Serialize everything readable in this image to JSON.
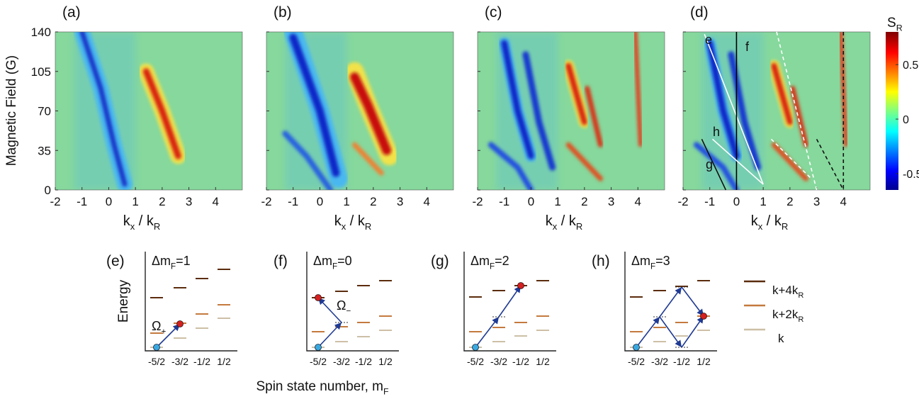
{
  "top": {
    "y_label": "Magnetic Field (G)",
    "ylim": [
      0,
      140
    ],
    "yticks": [
      0,
      35,
      70,
      105,
      140
    ],
    "xlim": [
      -2,
      5
    ],
    "xticks": [
      -2,
      -1,
      0,
      1,
      2,
      3,
      4
    ],
    "x_label": {
      "a": "k",
      "a_sub": "x",
      "b": " / k",
      "b_sub": "R"
    },
    "panels": [
      {
        "label": "(a)"
      },
      {
        "label": "(b)"
      },
      {
        "label": "(c)"
      },
      {
        "label": "(d)",
        "annotations": [
          "e",
          "f",
          "h",
          "g"
        ]
      }
    ]
  },
  "colorbar": {
    "title": {
      "text": "S",
      "sub": "R"
    },
    "lim": [
      -0.65,
      0.8
    ],
    "ticks": [
      0.5,
      0,
      -0.5
    ]
  },
  "bottom": {
    "y_label": "Energy",
    "x_label": {
      "text": "Spin state number, m",
      "sub": "F"
    },
    "mF_ticks": [
      "-5/2",
      "-3/2",
      "-1/2",
      "1/2"
    ],
    "panels": [
      {
        "label": "(e)",
        "title": {
          "text": "Δm",
          "sub": "F",
          "tail": "=1"
        },
        "omega": {
          "text": "Ω",
          "sub": "+"
        }
      },
      {
        "label": "(f)",
        "title": {
          "text": "Δm",
          "sub": "F",
          "tail": "=0"
        },
        "omega": {
          "text": "Ω",
          "sub": "−"
        }
      },
      {
        "label": "(g)",
        "title": {
          "text": "Δm",
          "sub": "F",
          "tail": "=2"
        }
      },
      {
        "label": "(h)",
        "title": {
          "text": "Δm",
          "sub": "F",
          "tail": "=3"
        }
      }
    ],
    "legend": [
      {
        "text": "k+4k",
        "sub": "R"
      },
      {
        "text": "k+2k",
        "sub": "R"
      },
      {
        "text": "k"
      }
    ]
  }
}
